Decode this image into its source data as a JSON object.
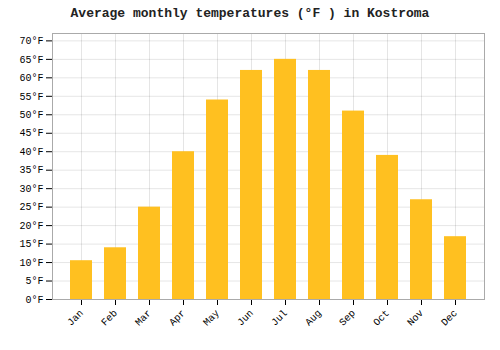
{
  "chart_data": {
    "type": "bar",
    "title": "Average monthly temperatures (°F ) in Kostroma",
    "categories": [
      "Jan",
      "Feb",
      "Mar",
      "Apr",
      "May",
      "Jun",
      "Jul",
      "Aug",
      "Sep",
      "Oct",
      "Nov",
      "Dec"
    ],
    "values": [
      10.5,
      14.0,
      25.0,
      40.0,
      54.0,
      62.0,
      65.0,
      62.0,
      51.0,
      39.0,
      27.0,
      17.0
    ],
    "color": "#FFC020",
    "ylim": [
      0,
      72
    ],
    "yticks": [
      {
        "value": 0,
        "label": "0°F"
      },
      {
        "value": 5,
        "label": "5°F"
      },
      {
        "value": 10,
        "label": "10°F"
      },
      {
        "value": 15,
        "label": "15°F"
      },
      {
        "value": 20,
        "label": "20°F"
      },
      {
        "value": 25,
        "label": "25°F"
      },
      {
        "value": 30,
        "label": "30°F"
      },
      {
        "value": 35,
        "label": "35°F"
      },
      {
        "value": 40,
        "label": "40°F"
      },
      {
        "value": 45,
        "label": "45°F"
      },
      {
        "value": 50,
        "label": "50°F"
      },
      {
        "value": 55,
        "label": "55°F"
      },
      {
        "value": 60,
        "label": "60°F"
      },
      {
        "value": 65,
        "label": "65°F"
      },
      {
        "value": 70,
        "label": "70°F"
      }
    ],
    "grid": true
  }
}
